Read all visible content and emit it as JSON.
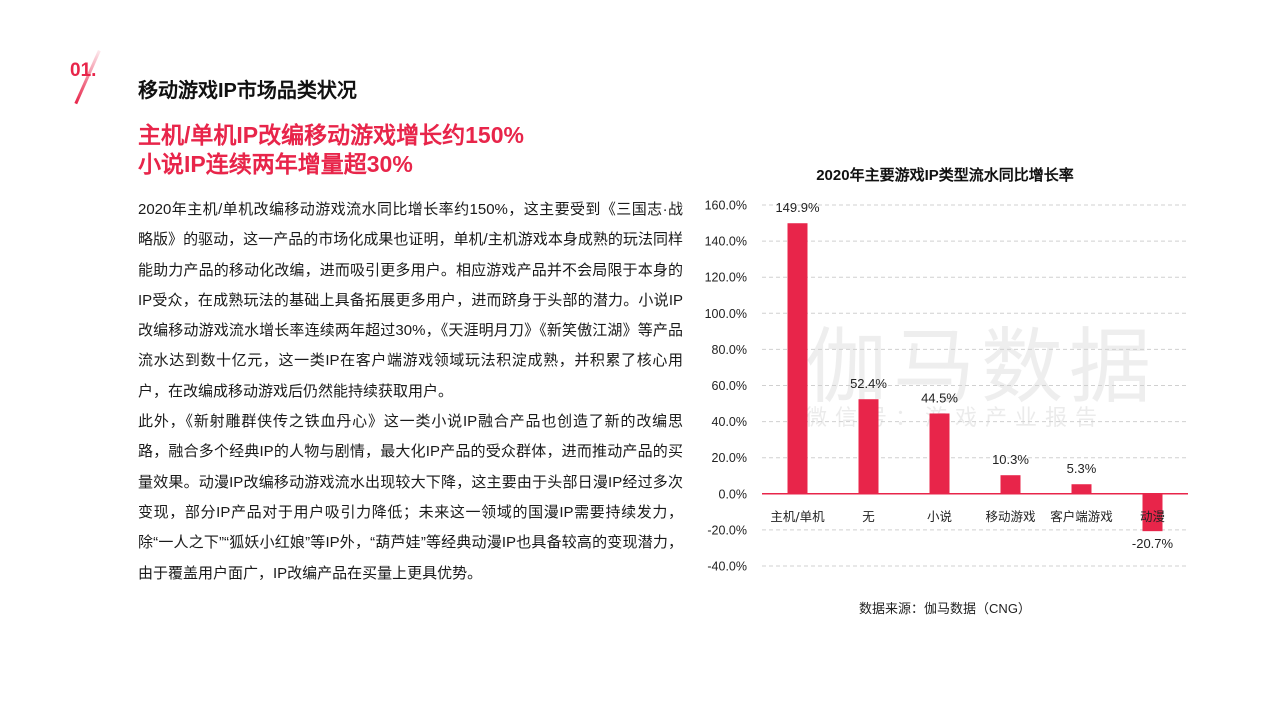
{
  "section": {
    "number": "01.",
    "title": "移动游戏IP市场品类状况"
  },
  "headline": {
    "line1": "主机/单机IP改编移动游戏增长约150%",
    "line2": "小说IP连续两年增量超30%"
  },
  "body": {
    "paragraph1": "2020年主机/单机改编移动游戏流水同比增长率约150%，这主要受到《三国志·战略版》的驱动，这一产品的市场化成果也证明，单机/主机游戏本身成熟的玩法同样能助力产品的移动化改编，进而吸引更多用户。相应游戏产品并不会局限于本身的IP受众，在成熟玩法的基础上具备拓展更多用户，进而跻身于头部的潜力。小说IP改编移动游戏流水增长率连续两年超过30%，《天涯明月刀》《新笑傲江湖》等产品流水达到数十亿元，这一类IP在客户端游戏领域玩法积淀成熟，并积累了核心用户，在改编成移动游戏后仍然能持续获取用户。",
    "paragraph2": "此外，《新射雕群侠传之铁血丹心》这一类小说IP融合产品也创造了新的改编思路，融合多个经典IP的人物与剧情，最大化IP产品的受众群体，进而推动产品的买量效果。动漫IP改编移动游戏流水出现较大下降，这主要由于头部日漫IP经过多次变现，部分IP产品对于用户吸引力降低；未来这一领域的国漫IP需要持续发力，除“一人之下”“狐妖小红娘”等IP外，“葫芦娃”等经典动漫IP也具备较高的变现潜力，由于覆盖用户面广，IP改编产品在买量上更具优势。"
  },
  "watermark": {
    "main": "伽马数据",
    "sub": "微信号：游戏产业报告"
  },
  "source": "数据来源：伽马数据（CNG）",
  "colors": {
    "accent": "#e8254a",
    "bar": "#e8254a"
  },
  "chart_data": {
    "type": "bar",
    "title": "2020年主要游戏IP类型流水同比增长率",
    "categories": [
      "主机/单机",
      "无",
      "小说",
      "移动游戏",
      "客户端游戏",
      "动漫"
    ],
    "values": [
      149.9,
      52.4,
      44.5,
      10.3,
      5.3,
      -20.7
    ],
    "value_labels": [
      "149.9%",
      "52.4%",
      "44.5%",
      "10.3%",
      "5.3%",
      "-20.7%"
    ],
    "yticks": [
      "160.0%",
      "140.0%",
      "120.0%",
      "100.0%",
      "80.0%",
      "60.0%",
      "40.0%",
      "20.0%",
      "0.0%",
      "-20.0%",
      "-40.0%"
    ],
    "ylim": [
      -40,
      160
    ],
    "ytick_step": 20,
    "grid": true,
    "xlabel": "",
    "ylabel": ""
  }
}
